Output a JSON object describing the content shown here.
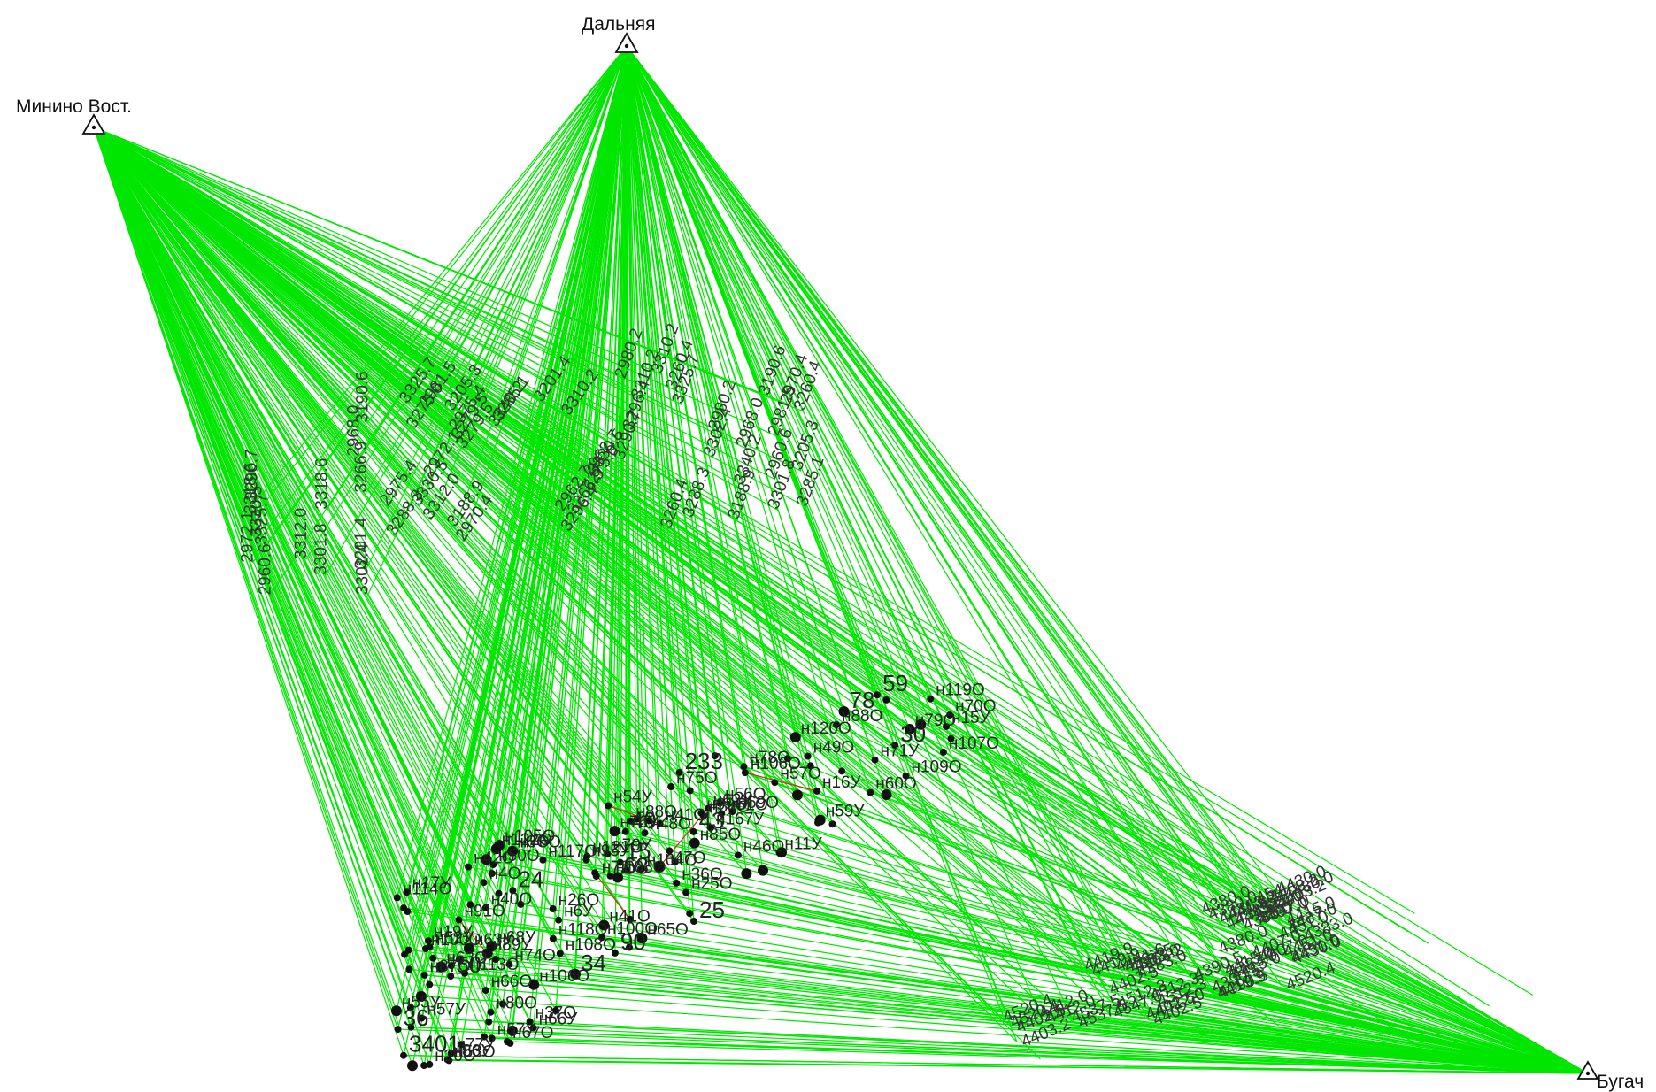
{
  "stations": [
    {
      "name": "Минино Вост."
    },
    {
      "name": "Дальняя"
    },
    {
      "name": "Бугач"
    }
  ],
  "labels_cluster_main": [
    "н79О",
    "н72У",
    "н78О",
    "н77У",
    "н75О",
    "н63О",
    "36",
    "н80О",
    "н64О",
    "н79У",
    "н76У",
    "н74О",
    "н67О",
    "43",
    "3401",
    "н85О",
    "н87О",
    "н71У",
    "н70О",
    "н66О",
    "78",
    "н76О",
    "н86У",
    "н88О",
    "90",
    "н55У",
    "н54У",
    "н41О",
    "н57У",
    "н46О",
    "н65О",
    "н69О",
    "н48О",
    "н42О",
    "н91О",
    "н89У",
    "н37О",
    "н99О",
    "н88О",
    "н95У",
    "68",
    "59",
    "н100О",
    "н11У",
    "н40О",
    "н59У",
    "н52У",
    "24",
    "н19У",
    "н36О",
    "н47О",
    "н62У",
    "н60О",
    "н50О",
    "25",
    "н41О",
    "н53О",
    "н56О",
    "н107О",
    "н104О",
    "н106О",
    "15",
    "н108О",
    "н49О",
    "н167У",
    "н63У",
    "н57О",
    "н108О",
    "н100О",
    "30",
    "34",
    "50",
    "н25О",
    "н26О",
    "н57У",
    "н68У",
    "н51О",
    "н20О",
    "н15У",
    "н4О",
    "н105О",
    "н109О",
    "н106О",
    "н16У",
    "н66У",
    "н120О",
    "н118О",
    "233",
    "н119О",
    "40",
    "н3О",
    "н17У",
    "н117О",
    "н114О",
    "н121О",
    "н122О",
    "н113О",
    "н6У"
  ],
  "labels_cluster_right": [
    "4380.0",
    "4383.0",
    "4407.0",
    "4402.5",
    "4363.2",
    "4403.2",
    "4412.0",
    "4415.0",
    "4430.0",
    "4451.0",
    "4390.5",
    "4441.6",
    "454",
    "4419.9",
    "4537.5",
    "4547.0",
    "4520.4",
    "4512.3"
  ],
  "labels_cluster_top": [
    "3325.7",
    "3330.5",
    "3310.2",
    "3260.4",
    "3285.1",
    "3301.8",
    "3296.4",
    "3275.0",
    "3340.2",
    "3318.6",
    "3290.7",
    "3302.4",
    "3288.3",
    "3266.9",
    "3312.0",
    "3279.5",
    "2970.4",
    "2960.6",
    "2981.5",
    "2968.0",
    "2975.4",
    "2962.7",
    "2980.2",
    "2972.1",
    "3190.6",
    "3201.4",
    "3188.9",
    "3205.3"
  ],
  "colors": {
    "ray": "#00e600",
    "leg": "#e02020",
    "point": "#111111",
    "text": "#222222"
  }
}
